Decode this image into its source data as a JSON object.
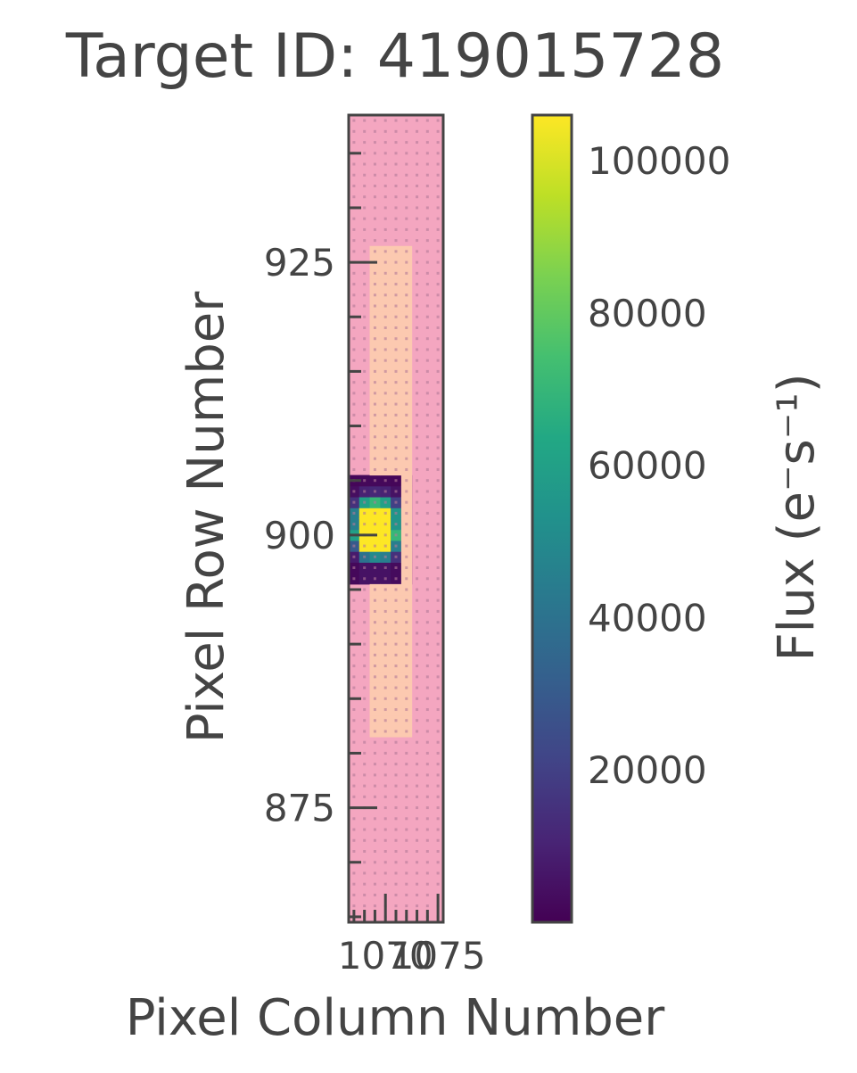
{
  "chart_data": {
    "type": "heatmap",
    "title": "Target ID: 419015728",
    "xlabel": "Pixel Column Number",
    "ylabel": "Pixel Row Number",
    "colorbar_label": "Flux (e⁻s⁻¹)",
    "colormap": "viridis",
    "grid": false,
    "x_ticks": [
      1070,
      1075
    ],
    "x_tick_labels": [
      "1070",
      "1075"
    ],
    "x_tick_labels_overlapping": "1070 and 1075 render overlapped as '107075'",
    "y_ticks": [
      875,
      900,
      925
    ],
    "y_tick_labels": [
      "875",
      "900",
      "925"
    ],
    "xlim": [
      1066.5,
      1075.5
    ],
    "ylim": [
      864.5,
      938.5
    ],
    "colorbar_ticks": [
      20000,
      40000,
      60000,
      80000,
      100000
    ],
    "colorbar_tick_labels": [
      "20000",
      "40000",
      "60000",
      "80000",
      "100000"
    ],
    "colorbar_range": [
      0,
      106000
    ],
    "mask_background_color": "#f4a6c0",
    "aperture_mask_color": "#fcc9b0",
    "aperture_mask_columns": [
      1069,
      1070,
      1071,
      1072
    ],
    "aperture_mask_rows": [
      882,
      926
    ],
    "flux_rows": [
      896,
      905
    ],
    "flux_columns": [
      1066,
      1073
    ],
    "flux_values_by_column": [
      [
        1500,
        3000,
        9000,
        30000,
        20000,
        8000,
        2000,
        1000
      ],
      [
        2000,
        8000,
        30000,
        60000,
        45000,
        15000,
        4000,
        1500
      ],
      [
        5000,
        40000,
        106000,
        106000,
        106000,
        60000,
        10000,
        2000
      ],
      [
        5000,
        50000,
        106000,
        106000,
        106000,
        70000,
        12000,
        2500
      ],
      [
        5000,
        45000,
        106000,
        106000,
        106000,
        60000,
        10000,
        2000
      ],
      [
        3000,
        15000,
        45000,
        70000,
        55000,
        20000,
        5000,
        1500
      ],
      [
        1500,
        4000,
        10000,
        20000,
        15000,
        6000,
        2000,
        1000
      ]
    ]
  },
  "colors": {
    "axes": "#444444",
    "text": "#444444"
  }
}
